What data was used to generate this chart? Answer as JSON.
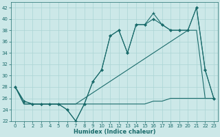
{
  "xlabel": "Humidex (Indice chaleur)",
  "bg_color": "#cce8e8",
  "grid_color": "#aad4d4",
  "line_color": "#1a6b6b",
  "xlim": [
    -0.5,
    23.5
  ],
  "ylim": [
    22,
    43
  ],
  "yticks": [
    22,
    24,
    26,
    28,
    30,
    32,
    34,
    36,
    38,
    40,
    42
  ],
  "xticks": [
    0,
    1,
    2,
    3,
    4,
    5,
    6,
    7,
    8,
    9,
    10,
    11,
    12,
    13,
    14,
    15,
    16,
    17,
    18,
    19,
    20,
    21,
    22,
    23
  ],
  "series_flat": {
    "x": [
      0,
      1,
      2,
      3,
      4,
      5,
      6,
      7,
      8,
      9,
      10,
      11,
      12,
      13,
      14,
      15,
      16,
      17,
      18,
      19,
      20,
      21,
      22,
      23
    ],
    "y": [
      28,
      25,
      25,
      25,
      25,
      25,
      25,
      25,
      25,
      25,
      25,
      25,
      25,
      25,
      25,
      25,
      25.5,
      25.5,
      26,
      26,
      26,
      26,
      26,
      26
    ]
  },
  "series_linear": {
    "x": [
      0,
      1,
      2,
      3,
      4,
      5,
      6,
      7,
      8,
      9,
      10,
      11,
      12,
      13,
      14,
      15,
      16,
      17,
      18,
      19,
      20,
      21,
      22,
      23
    ],
    "y": [
      28,
      25,
      25,
      25,
      25,
      25,
      25,
      25,
      26,
      27,
      28,
      29,
      30,
      31,
      32,
      33,
      34,
      35,
      36,
      37,
      38,
      38,
      26,
      26
    ]
  },
  "series_plus": {
    "x": [
      0,
      1,
      2,
      3,
      4,
      5,
      6,
      7,
      8,
      9,
      10,
      11,
      12,
      13,
      14,
      15,
      16,
      17,
      18,
      19,
      20,
      21,
      22,
      23
    ],
    "y": [
      28,
      25.5,
      25,
      25,
      25,
      25,
      24,
      22,
      25,
      29,
      31,
      37,
      38,
      34,
      39,
      39,
      41,
      39,
      38,
      38,
      38,
      42,
      31,
      26
    ]
  },
  "series_diamond": {
    "x": [
      0,
      1,
      2,
      3,
      4,
      5,
      6,
      7,
      8,
      9,
      10,
      11,
      12,
      13,
      14,
      15,
      16,
      17,
      18,
      19,
      20,
      21,
      22,
      23
    ],
    "y": [
      28,
      25.5,
      25,
      25,
      25,
      25,
      24,
      22,
      25,
      29,
      31,
      37,
      38,
      34,
      39,
      39,
      40,
      39,
      38,
      38,
      38,
      42,
      31,
      26
    ]
  }
}
